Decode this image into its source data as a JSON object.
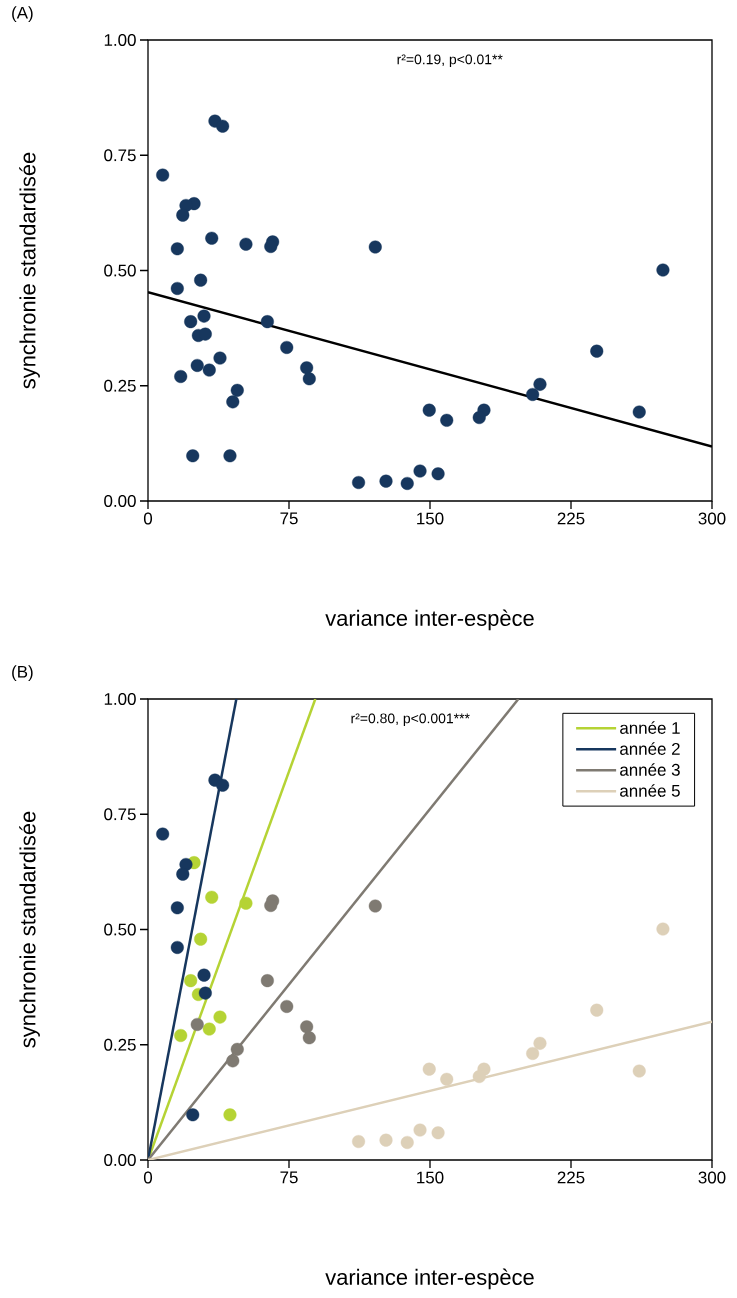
{
  "chart_data": [
    {
      "type": "scatter",
      "title": "(A)",
      "xlabel": "variance inter-espèce",
      "ylabel": "synchronie standardisée",
      "annotations": [
        "r²=0.19, p<0.01**"
      ],
      "marker": "circle",
      "xlim": [
        0,
        300
      ],
      "ylim": [
        0,
        1
      ],
      "xticks": [
        0,
        75,
        150,
        225,
        300
      ],
      "yticks": [
        {
          "value": 0,
          "label": "0.00"
        },
        {
          "value": 0.25,
          "label": "0.25"
        },
        {
          "value": 0.5,
          "label": "0.50"
        },
        {
          "value": 0.75,
          "label": "0.75"
        },
        {
          "value": 1,
          "label": "1.00"
        }
      ],
      "series": [
        {
          "type": "line",
          "marker": "none",
          "color": "#000000",
          "x": [
            0,
            300
          ],
          "values": [
            0.453,
            0.118
          ]
        },
        {
          "color": "#17375e",
          "x": [
            24.5,
            33.9,
            52.1,
            28.0,
            22.7,
            26.8,
            38.3,
            32.6,
            17.4,
            43.6,
            35.6,
            39.7,
            7.8,
            20.2,
            18.5,
            15.6,
            15.6,
            29.8,
            30.5,
            23.8,
            66.3,
            65.3,
            63.5,
            73.8,
            26.2,
            84.4,
            85.8,
            47.5,
            45.1,
            120.9,
            273.9,
            238.7,
            208.5,
            204.6,
            149.6,
            178.7,
            176.2,
            158.9,
            261.3,
            112.0,
            126.6,
            137.9,
            144.7,
            154.3
          ],
          "values": [
            0.645,
            0.57,
            0.557,
            0.479,
            0.389,
            0.359,
            0.31,
            0.284,
            0.27,
            0.098,
            0.824,
            0.813,
            0.707,
            0.641,
            0.62,
            0.547,
            0.461,
            0.401,
            0.362,
            0.098,
            0.562,
            0.552,
            0.389,
            0.333,
            0.294,
            0.289,
            0.265,
            0.24,
            0.215,
            0.551,
            0.501,
            0.325,
            0.253,
            0.231,
            0.197,
            0.197,
            0.181,
            0.175,
            0.193,
            0.04,
            0.043,
            0.038,
            0.065,
            0.059
          ]
        }
      ]
    },
    {
      "type": "scatter",
      "title": "(B)",
      "xlabel": "variance inter-espèce",
      "ylabel": "synchronie standardisée",
      "annotations": [
        "r²=0.80, p<0.001***"
      ],
      "marker": "circle",
      "legend": "top right",
      "xlim": [
        0,
        300
      ],
      "ylim": [
        0,
        1
      ],
      "xticks": [
        0,
        75,
        150,
        225,
        300
      ],
      "yticks": [
        {
          "value": 0,
          "label": "0.00"
        },
        {
          "value": 0.25,
          "label": "0.25"
        },
        {
          "value": 0.5,
          "label": "0.50"
        },
        {
          "value": 0.75,
          "label": "0.75"
        },
        {
          "value": 1,
          "label": "1.00"
        }
      ],
      "series": [
        {
          "type": "line",
          "marker": "none",
          "name": "année 1",
          "color": "#b5d334",
          "x": [
            0,
            89
          ],
          "values": [
            0,
            1
          ]
        },
        {
          "type": "line",
          "marker": "none",
          "name": "année 2",
          "color": "#17375e",
          "x": [
            0,
            47
          ],
          "values": [
            0,
            1
          ]
        },
        {
          "type": "line",
          "marker": "none",
          "name": "année 3",
          "color": "#7f7a72",
          "x": [
            0,
            197
          ],
          "values": [
            0,
            1
          ]
        },
        {
          "type": "line",
          "marker": "none",
          "name": "année 5",
          "color": "#ddd0b8",
          "x": [
            0,
            300
          ],
          "values": [
            0,
            0.3
          ]
        },
        {
          "color": "#b5d334",
          "x": [
            24.5,
            33.9,
            52.1,
            28.0,
            22.7,
            26.8,
            38.3,
            32.6,
            17.4,
            43.6
          ],
          "values": [
            0.645,
            0.57,
            0.557,
            0.479,
            0.389,
            0.359,
            0.31,
            0.284,
            0.27,
            0.098
          ]
        },
        {
          "color": "#17375e",
          "x": [
            35.6,
            39.7,
            7.8,
            20.2,
            18.5,
            15.6,
            15.6,
            29.8,
            30.5,
            23.8
          ],
          "values": [
            0.824,
            0.813,
            0.707,
            0.641,
            0.62,
            0.547,
            0.461,
            0.401,
            0.362,
            0.098
          ]
        },
        {
          "color": "#7f7a72",
          "x": [
            66.3,
            65.3,
            63.5,
            73.8,
            26.2,
            84.4,
            85.8,
            47.5,
            45.1,
            120.9
          ],
          "values": [
            0.562,
            0.552,
            0.389,
            0.333,
            0.294,
            0.289,
            0.265,
            0.24,
            0.215,
            0.551
          ]
        },
        {
          "color": "#ddd0b8",
          "x": [
            273.9,
            238.7,
            208.5,
            204.6,
            149.6,
            178.7,
            176.2,
            158.9,
            261.3,
            112.0,
            126.6,
            137.9,
            144.7,
            154.3
          ],
          "values": [
            0.501,
            0.325,
            0.253,
            0.231,
            0.197,
            0.197,
            0.181,
            0.175,
            0.193,
            0.04,
            0.043,
            0.038,
            0.065,
            0.059
          ]
        }
      ]
    }
  ]
}
